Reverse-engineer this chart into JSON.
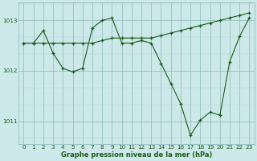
{
  "title": "Graphe pression niveau de la mer (hPa)",
  "bg_color": "#cce8e8",
  "line_color": "#1a5c1a",
  "marker_color": "#1a5c1a",
  "grid_minor_color": "#b0d4d4",
  "grid_major_color": "#8cb8b8",
  "ylim": [
    1010.55,
    1013.35
  ],
  "yticks": [
    1011,
    1012,
    1013
  ],
  "xlim": [
    -0.5,
    23.5
  ],
  "xticks": [
    0,
    1,
    2,
    3,
    4,
    5,
    6,
    7,
    8,
    9,
    10,
    11,
    12,
    13,
    14,
    15,
    16,
    17,
    18,
    19,
    20,
    21,
    22,
    23
  ],
  "hours1": [
    0,
    1,
    2,
    3,
    4,
    5,
    6,
    7,
    8,
    9,
    10,
    11,
    12,
    13,
    14,
    15,
    16,
    17,
    18,
    19,
    20,
    21,
    22,
    23
  ],
  "pressure1": [
    1012.55,
    1012.55,
    1012.55,
    1012.55,
    1012.55,
    1012.55,
    1012.55,
    1012.55,
    1012.6,
    1012.65,
    1012.65,
    1012.65,
    1012.65,
    1012.65,
    1012.7,
    1012.75,
    1012.8,
    1012.85,
    1012.9,
    1012.95,
    1013.0,
    1013.05,
    1013.1,
    1013.15
  ],
  "hours2": [
    0,
    1,
    2,
    3,
    4,
    5,
    6,
    7,
    8,
    9,
    10,
    11,
    12,
    13,
    14,
    15,
    16,
    17,
    18,
    19,
    20,
    21,
    22,
    23
  ],
  "pressure2": [
    1012.55,
    1012.55,
    1012.8,
    1012.35,
    1012.05,
    1011.98,
    1012.05,
    1012.85,
    1013.0,
    1013.05,
    1012.55,
    1012.55,
    1012.6,
    1012.55,
    1012.15,
    1011.75,
    1011.35,
    1010.72,
    1011.02,
    1011.18,
    1011.12,
    1012.18,
    1012.68,
    1013.05
  ],
  "label_fontsize": 6.0,
  "tick_fontsize": 5.2
}
